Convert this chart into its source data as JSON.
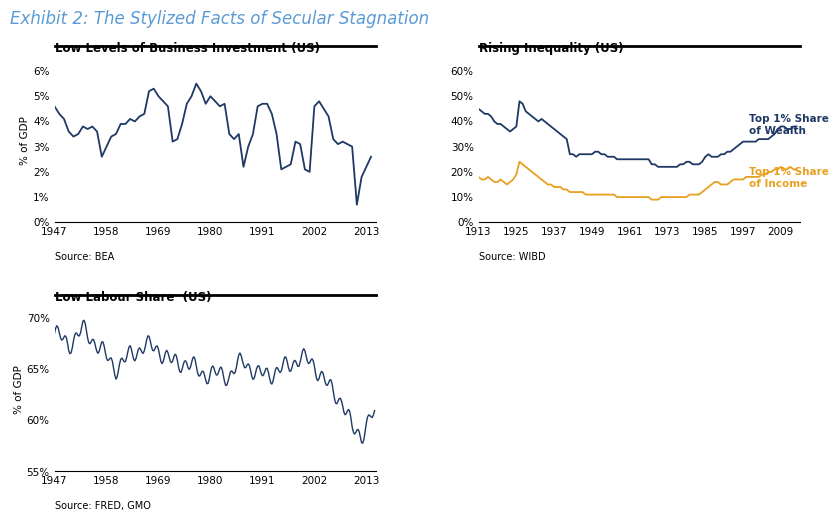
{
  "title": "Exhibit 2: The Stylized Facts of Secular Stagnation",
  "title_color": "#5b9bd5",
  "title_fontsize": 12,
  "chart1_title": "Low Levels of Business Investment (US)",
  "chart1_ylabel": "% of GDP",
  "chart1_source": "Source: BEA",
  "chart1_xlim": [
    1947,
    2015
  ],
  "chart1_ylim": [
    0,
    0.065
  ],
  "chart1_xticks": [
    1947,
    1958,
    1969,
    1980,
    1991,
    2002,
    2013
  ],
  "chart1_yticks": [
    0.0,
    0.01,
    0.02,
    0.03,
    0.04,
    0.05,
    0.06
  ],
  "chart1_color": "#1f3864",
  "chart2_title": "Rising Inequality (US)",
  "chart2_source": "Source: WIBD",
  "chart2_xlim": [
    1913,
    2015
  ],
  "chart2_ylim": [
    0,
    0.65
  ],
  "chart2_xticks": [
    1913,
    1925,
    1937,
    1949,
    1961,
    1973,
    1985,
    1997,
    2009
  ],
  "chart2_yticks": [
    0.0,
    0.1,
    0.2,
    0.3,
    0.4,
    0.5,
    0.6
  ],
  "chart2_color_wealth": "#1f3864",
  "chart2_color_income": "#e8a020",
  "chart2_label_wealth": "Top 1% Share\nof Wealth",
  "chart2_label_income": "Top 1% Share\nof Income",
  "chart3_title": "Low Labour Share  (US)",
  "chart3_ylabel": "% of GDP",
  "chart3_source": "Source: FRED, GMO",
  "chart3_xlim": [
    1947,
    2015
  ],
  "chart3_ylim": [
    0.55,
    0.71
  ],
  "chart3_xticks": [
    1947,
    1958,
    1969,
    1980,
    1991,
    2002,
    2013
  ],
  "chart3_yticks": [
    0.55,
    0.6,
    0.65,
    0.7
  ],
  "chart3_color": "#1f3864",
  "background_color": "#ffffff",
  "source_fontsize": 7,
  "subtitle_fontsize": 8.5,
  "tick_fontsize": 7.5
}
